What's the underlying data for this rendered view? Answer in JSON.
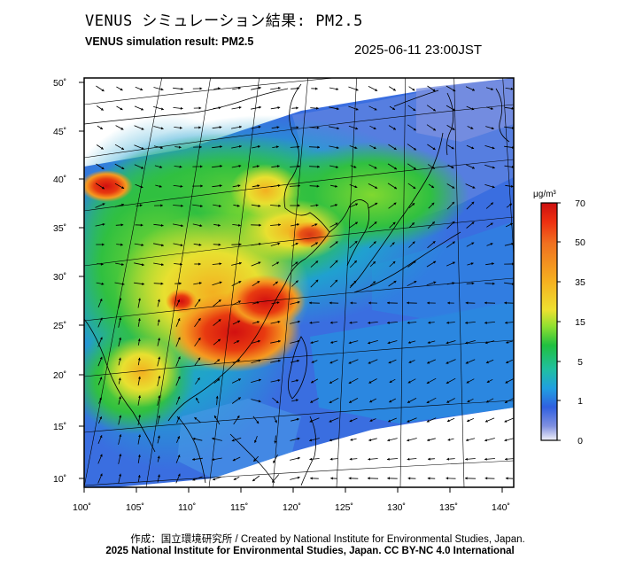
{
  "header": {
    "title_ja": "VENUS シミュレーション結果: PM2.5",
    "title_en": "VENUS simulation result: PM2.5",
    "timestamp": "2025-06-11 23:00JST"
  },
  "map": {
    "lon_ticks": [
      "100˚",
      "105˚",
      "110˚",
      "115˚",
      "120˚",
      "125˚",
      "130˚",
      "135˚",
      "140˚"
    ],
    "lat_ticks": [
      "50˚",
      "45˚",
      "40˚",
      "35˚",
      "30˚",
      "25˚",
      "20˚",
      "15˚",
      "10˚"
    ],
    "lon_range": [
      100,
      142
    ],
    "lat_range": [
      8,
      51
    ],
    "colors": {
      "background": "#ffffff",
      "coastline": "#000000",
      "graticule": "#000000",
      "vector": "#000000"
    }
  },
  "colorbar": {
    "unit": "μg/m³",
    "labels": [
      "70",
      "50",
      "35",
      "15",
      "5",
      "1",
      "0"
    ],
    "levels": [
      70,
      50,
      35,
      15,
      5,
      1,
      0
    ],
    "colors": [
      "#cc1010",
      "#ee4a10",
      "#f5a020",
      "#eee030",
      "#90e030",
      "#20c040",
      "#20c0a0",
      "#2090e0",
      "#3060e0",
      "#8090e0",
      "#e6e6f5"
    ]
  },
  "footer": {
    "credit": "作成：国立環境研究所 / Created by National Institute for Environmental Studies, Japan.",
    "copyright": "2025 National Institute for Environmental Studies, Japan. CC BY-NC 4.0 International"
  }
}
